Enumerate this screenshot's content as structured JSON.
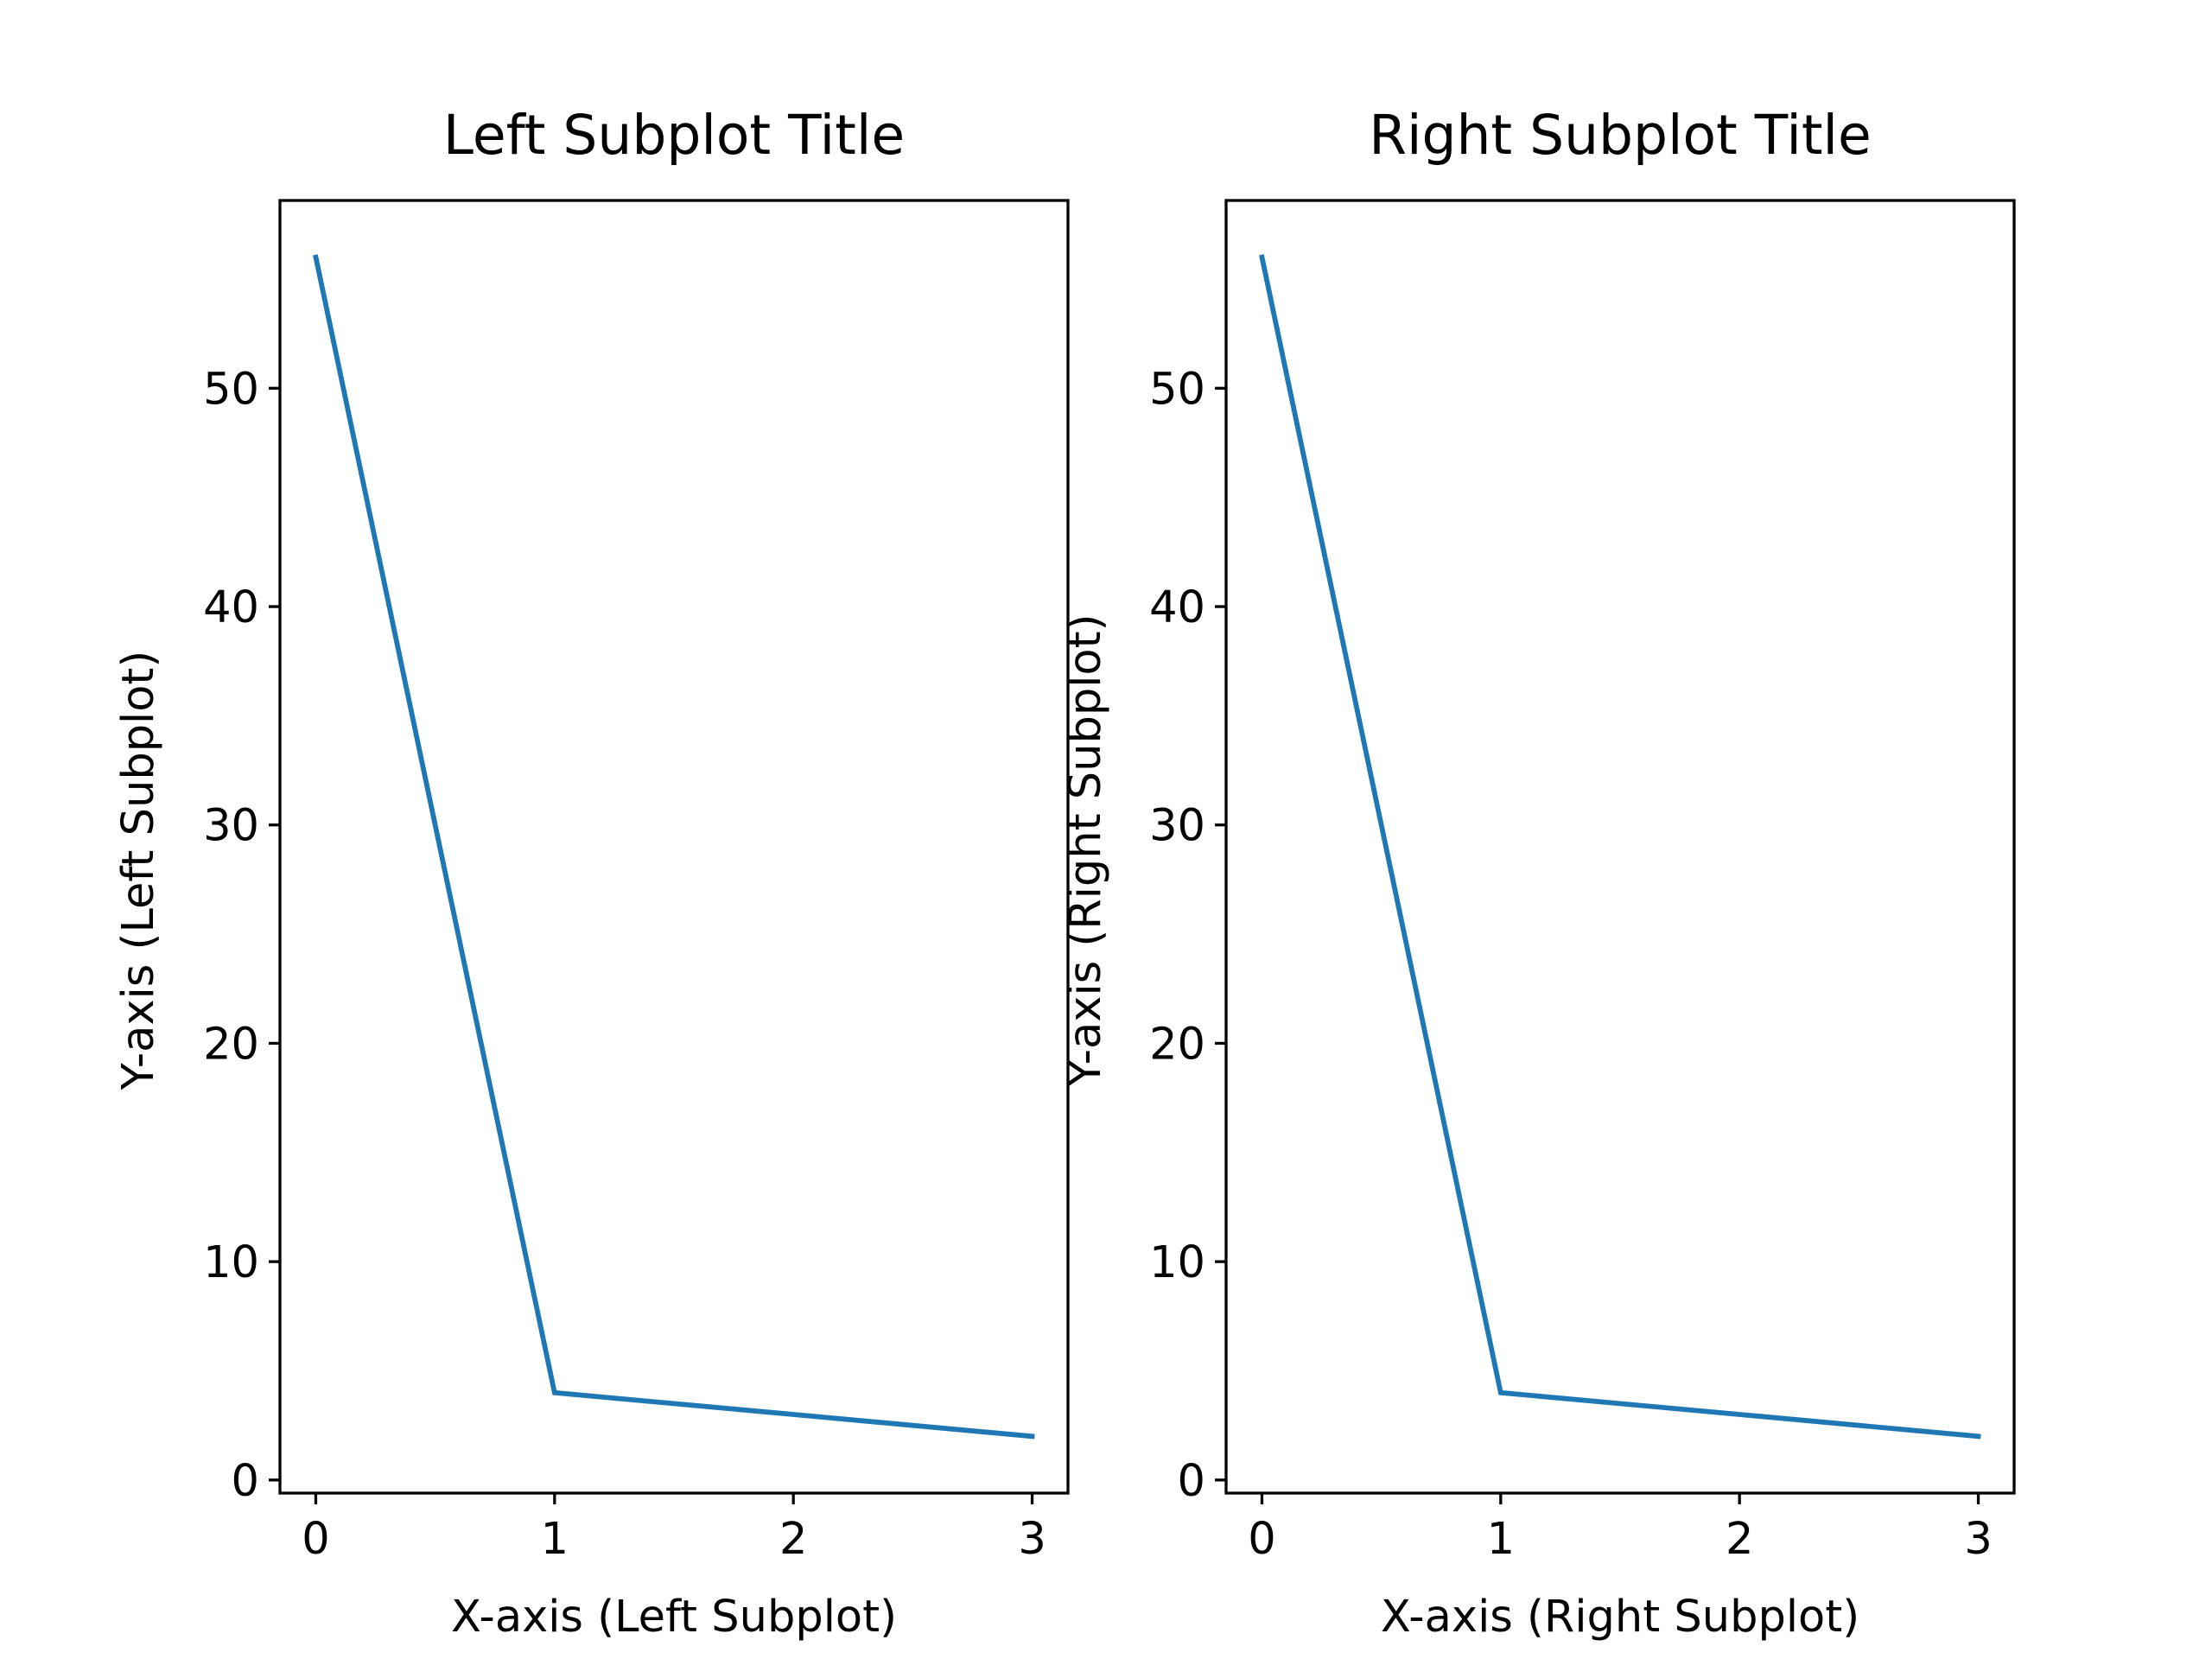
{
  "chart_data": [
    {
      "type": "line",
      "title": "Left Subplot Title",
      "xlabel": "X-axis (Left Subplot)",
      "ylabel": "Y-axis (Left Subplot)",
      "xlim": [
        -0.15,
        3.15
      ],
      "ylim": [
        -0.6,
        58.6
      ],
      "xticks": [
        0,
        1,
        2,
        3
      ],
      "yticks": [
        0,
        10,
        20,
        30,
        40,
        50
      ],
      "grid": false,
      "series": [
        {
          "x": [
            0,
            1,
            2,
            3
          ],
          "values": [
            56,
            4,
            3,
            2
          ],
          "color": "#1f77b4"
        }
      ]
    },
    {
      "type": "line",
      "title": "Right Subplot Title",
      "xlabel": "X-axis (Right Subplot)",
      "ylabel": "Y-axis (Right Subplot)",
      "xlim": [
        -0.15,
        3.15
      ],
      "ylim": [
        -0.6,
        58.6
      ],
      "xticks": [
        0,
        1,
        2,
        3
      ],
      "yticks": [
        0,
        10,
        20,
        30,
        40,
        50
      ],
      "grid": false,
      "series": [
        {
          "x": [
            0,
            1,
            2,
            3
          ],
          "values": [
            56,
            4,
            3,
            2
          ],
          "color": "#1f77b4"
        }
      ]
    }
  ]
}
